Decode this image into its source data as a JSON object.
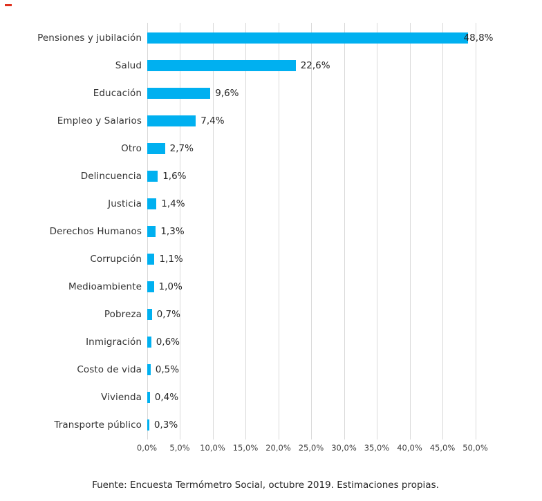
{
  "marker": {
    "color": "#e0301e"
  },
  "chart_data": {
    "type": "bar",
    "orientation": "horizontal",
    "title": "",
    "xlabel": "",
    "ylabel": "",
    "categories": [
      "Pensiones y jubilación",
      "Salud",
      "Educación",
      "Empleo y Salarios",
      "Otro",
      "Delincuencia",
      "Justicia",
      "Derechos Humanos",
      "Corrupción",
      "Medioambiente",
      "Pobreza",
      "Inmigración",
      "Costo de vida",
      "Vivienda",
      "Transporte público"
    ],
    "values": [
      48.8,
      22.6,
      9.6,
      7.4,
      2.7,
      1.6,
      1.4,
      1.3,
      1.1,
      1.0,
      0.7,
      0.6,
      0.5,
      0.4,
      0.3
    ],
    "value_labels": [
      "48,8%",
      "22,6%",
      "9,6%",
      "7,4%",
      "2,7%",
      "1,6%",
      "1,4%",
      "1,3%",
      "1,1%",
      "1,0%",
      "0,7%",
      "0,6%",
      "0,5%",
      "0,4%",
      "0,3%"
    ],
    "x_ticks": [
      "0,0%",
      "5,0%",
      "10,0%",
      "15,0%",
      "20,0%",
      "25,0%",
      "30,0%",
      "35,0%",
      "40,0%",
      "45,0%",
      "50,0%"
    ],
    "xlim": [
      0,
      50
    ],
    "grid": "vertical-gridlines",
    "legend": "none",
    "bar_color": "#00B0F0",
    "gridline_color": "#D9D9D9"
  },
  "footer": {
    "source_note": "Fuente: Encuesta Termómetro Social, octubre 2019. Estimaciones propias."
  }
}
